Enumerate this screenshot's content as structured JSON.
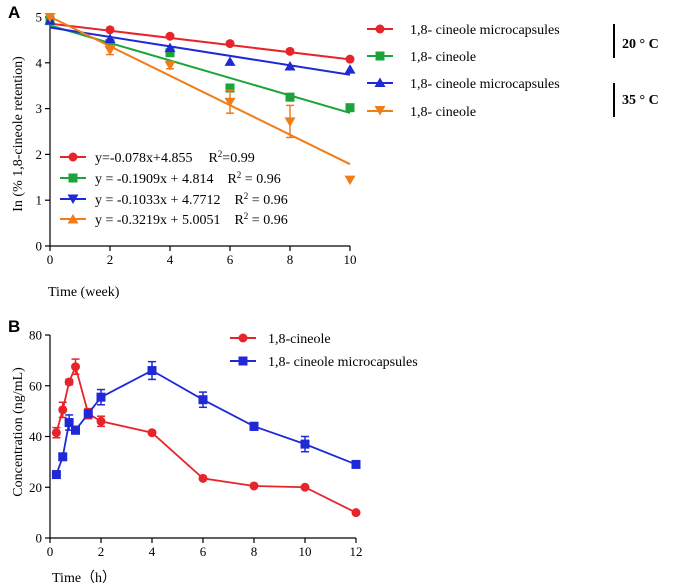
{
  "chart_data": [
    {
      "panel": "A",
      "type": "scatter",
      "xlabel": "Time (week)",
      "ylabel": "In (% 1,8-cineole retention)",
      "xlim": [
        0,
        10
      ],
      "ylim": [
        0,
        5
      ],
      "xticks": [
        "0",
        "2",
        "4",
        "6",
        "8",
        "10"
      ],
      "yticks": [
        "0",
        "1",
        "2",
        "3",
        "4",
        "5"
      ],
      "legend": [
        {
          "label": "1,8- cineole microcapsules",
          "color": "#e8242b",
          "marker": "circle"
        },
        {
          "label": "1,8- cineole",
          "color": "#1aa43a",
          "marker": "square"
        },
        {
          "label": "1,8- cineole microcapsules",
          "color": "#1f2ad6",
          "marker": "triangle-up"
        },
        {
          "label": "1,8- cineole",
          "color": "#f07c1a",
          "marker": "triangle-down"
        }
      ],
      "temperature_groups": [
        "20 ° C",
        "35 ° C"
      ],
      "series": [
        {
          "name": "1,8- cineole microcapsules 20 °C",
          "color": "#e8242b",
          "marker": "circle",
          "x": [
            0,
            2,
            4,
            6,
            8,
            10
          ],
          "y": [
            4.92,
            4.72,
            4.58,
            4.42,
            4.25,
            4.08
          ],
          "fit": {
            "slope": -0.078,
            "intercept": 4.855
          }
        },
        {
          "name": "1,8- cineole 20 °C",
          "color": "#1aa43a",
          "marker": "square",
          "x": [
            0,
            2,
            4,
            6,
            8,
            10
          ],
          "y": [
            4.92,
            4.42,
            4.22,
            3.45,
            3.25,
            3.02
          ],
          "fit": {
            "slope": -0.1909,
            "intercept": 4.814
          }
        },
        {
          "name": "1,8- cineole microcapsules 35 °C",
          "color": "#1f2ad6",
          "marker": "triangle-up",
          "x": [
            0,
            2,
            4,
            6,
            8,
            10
          ],
          "y": [
            4.92,
            4.52,
            4.32,
            4.02,
            3.92,
            3.85
          ],
          "fit": {
            "slope": -0.1033,
            "intercept": 4.7712
          }
        },
        {
          "name": "1,8- cineole 35 °C",
          "color": "#f07c1a",
          "marker": "triangle-down",
          "x": [
            0,
            2,
            4,
            6,
            8,
            10
          ],
          "y": [
            5.0,
            4.28,
            3.95,
            3.15,
            2.72,
            1.45
          ],
          "err": [
            0,
            0.1,
            0.08,
            0.25,
            0.35,
            0
          ],
          "fit": {
            "slope": -0.3219,
            "intercept": 5.0051
          }
        }
      ],
      "equations": [
        {
          "text": "y=-0.078x+4.855",
          "r2_label": "R",
          "r2_sup": "2",
          "r2_value": "=0.99",
          "color": "#e8242b",
          "marker": "circle"
        },
        {
          "text": "y = -0.1909x + 4.814",
          "r2_label": "R",
          "r2_sup": "2",
          "r2_value": " = 0.96",
          "color": "#1aa43a",
          "marker": "square"
        },
        {
          "text": "y = -0.1033x + 4.7712",
          "r2_label": "R",
          "r2_sup": "2",
          "r2_value": " = 0.96",
          "color": "#1f2ad6",
          "marker": "triangle-down"
        },
        {
          "text": "y = -0.3219x + 5.0051",
          "r2_label": "R",
          "r2_sup": "2",
          "r2_value": " = 0.96",
          "color": "#f07c1a",
          "marker": "triangle-up"
        }
      ]
    },
    {
      "panel": "B",
      "type": "line",
      "xlabel": "Time（h）",
      "ylabel": "Concentration (ng/mL)",
      "xlim": [
        0,
        12
      ],
      "ylim": [
        0,
        80
      ],
      "xticks": [
        "0",
        "2",
        "4",
        "6",
        "8",
        "10",
        "12"
      ],
      "yticks": [
        "0",
        "20",
        "40",
        "60",
        "80"
      ],
      "series": [
        {
          "name": "1,8-cineole",
          "color": "#e8242b",
          "marker": "circle",
          "x": [
            0.25,
            0.5,
            0.75,
            1,
            1.5,
            2,
            4,
            6,
            8,
            10,
            12
          ],
          "y": [
            41.5,
            50.5,
            61.5,
            67.5,
            49,
            46,
            41.5,
            23.5,
            20.5,
            20,
            10
          ],
          "err": [
            2,
            3,
            1,
            3,
            2,
            2,
            0.5,
            0.5,
            0.5,
            0.5,
            0.5
          ]
        },
        {
          "name": "1,8- cineole microcapsules",
          "color": "#1f2ad6",
          "marker": "square",
          "x": [
            0.25,
            0.5,
            0.75,
            1,
            1.5,
            2,
            4,
            6,
            8,
            10,
            12
          ],
          "y": [
            25,
            32,
            45.5,
            42.5,
            49,
            55.5,
            66,
            54.5,
            44,
            37,
            29
          ],
          "err": [
            0.5,
            1,
            3,
            1.5,
            1,
            3,
            3.5,
            3,
            1.5,
            3,
            1
          ]
        }
      ]
    }
  ]
}
